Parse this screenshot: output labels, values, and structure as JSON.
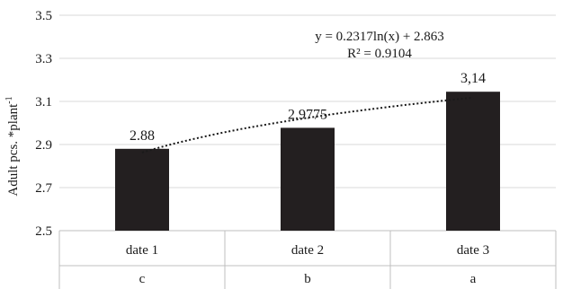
{
  "chart_data": {
    "type": "bar",
    "categories": [
      "date 1",
      "date 2",
      "date 3"
    ],
    "group_labels": [
      "c",
      "b",
      "a"
    ],
    "values": [
      2.88,
      2.9775,
      3.145
    ],
    "data_labels": [
      "2.88",
      "2.9775",
      "3,14"
    ],
    "ylabel": "Adult pcs. *plant",
    "ylabel_superscript": "-1",
    "xlabel": "",
    "ylim": [
      2.5,
      3.5
    ],
    "yticks": [
      2.5,
      2.7,
      2.9,
      3.1,
      3.3,
      3.5
    ],
    "ytick_labels": [
      "2.5",
      "2.7",
      "2.9",
      "3.1",
      "3.3",
      "3.5"
    ],
    "grid": "horizontal",
    "bar_color": "#231f20",
    "grid_color": "#d9d9d9",
    "trendline": {
      "type": "logarithmic",
      "style": "dotted",
      "equation": "y = 0.2317ln(x) + 2.863",
      "r_squared": "R² = 0.9104",
      "a": 0.2317,
      "b": 2.863
    }
  }
}
